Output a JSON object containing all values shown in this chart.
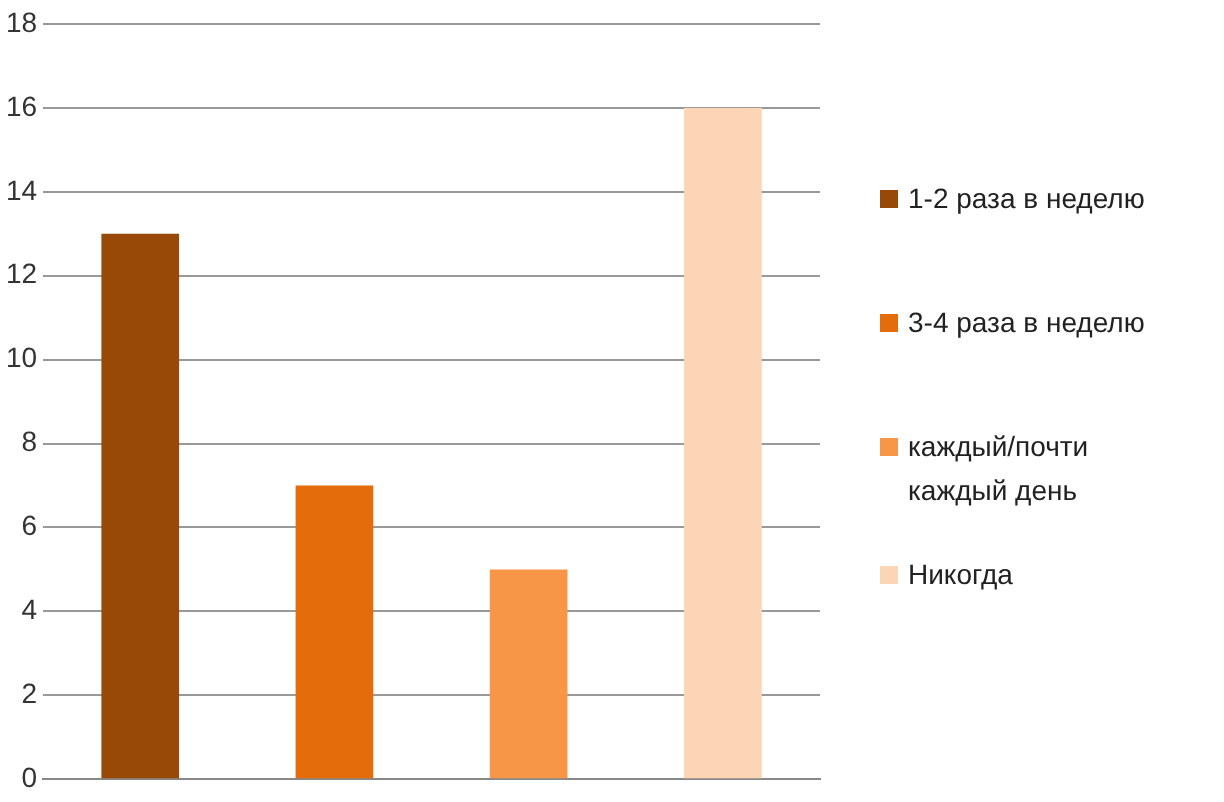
{
  "chart_data": {
    "type": "bar",
    "categories": [
      null
    ],
    "series": [
      {
        "name": "1-2 раза в неделю",
        "color": "#984807",
        "values": [
          13
        ]
      },
      {
        "name": "3-4 раза в неделю",
        "color": "#e46c0a",
        "values": [
          7
        ]
      },
      {
        "name": "каждый/почти каждый день",
        "color": "#f79646",
        "values": [
          5
        ]
      },
      {
        "name": "Никогда",
        "color": "#fcd5b5",
        "values": [
          16
        ]
      }
    ],
    "ylim": [
      0,
      18
    ],
    "yticks": [
      0,
      2,
      4,
      6,
      8,
      10,
      12,
      14,
      16,
      18
    ],
    "grid": "y",
    "legend": "right"
  }
}
